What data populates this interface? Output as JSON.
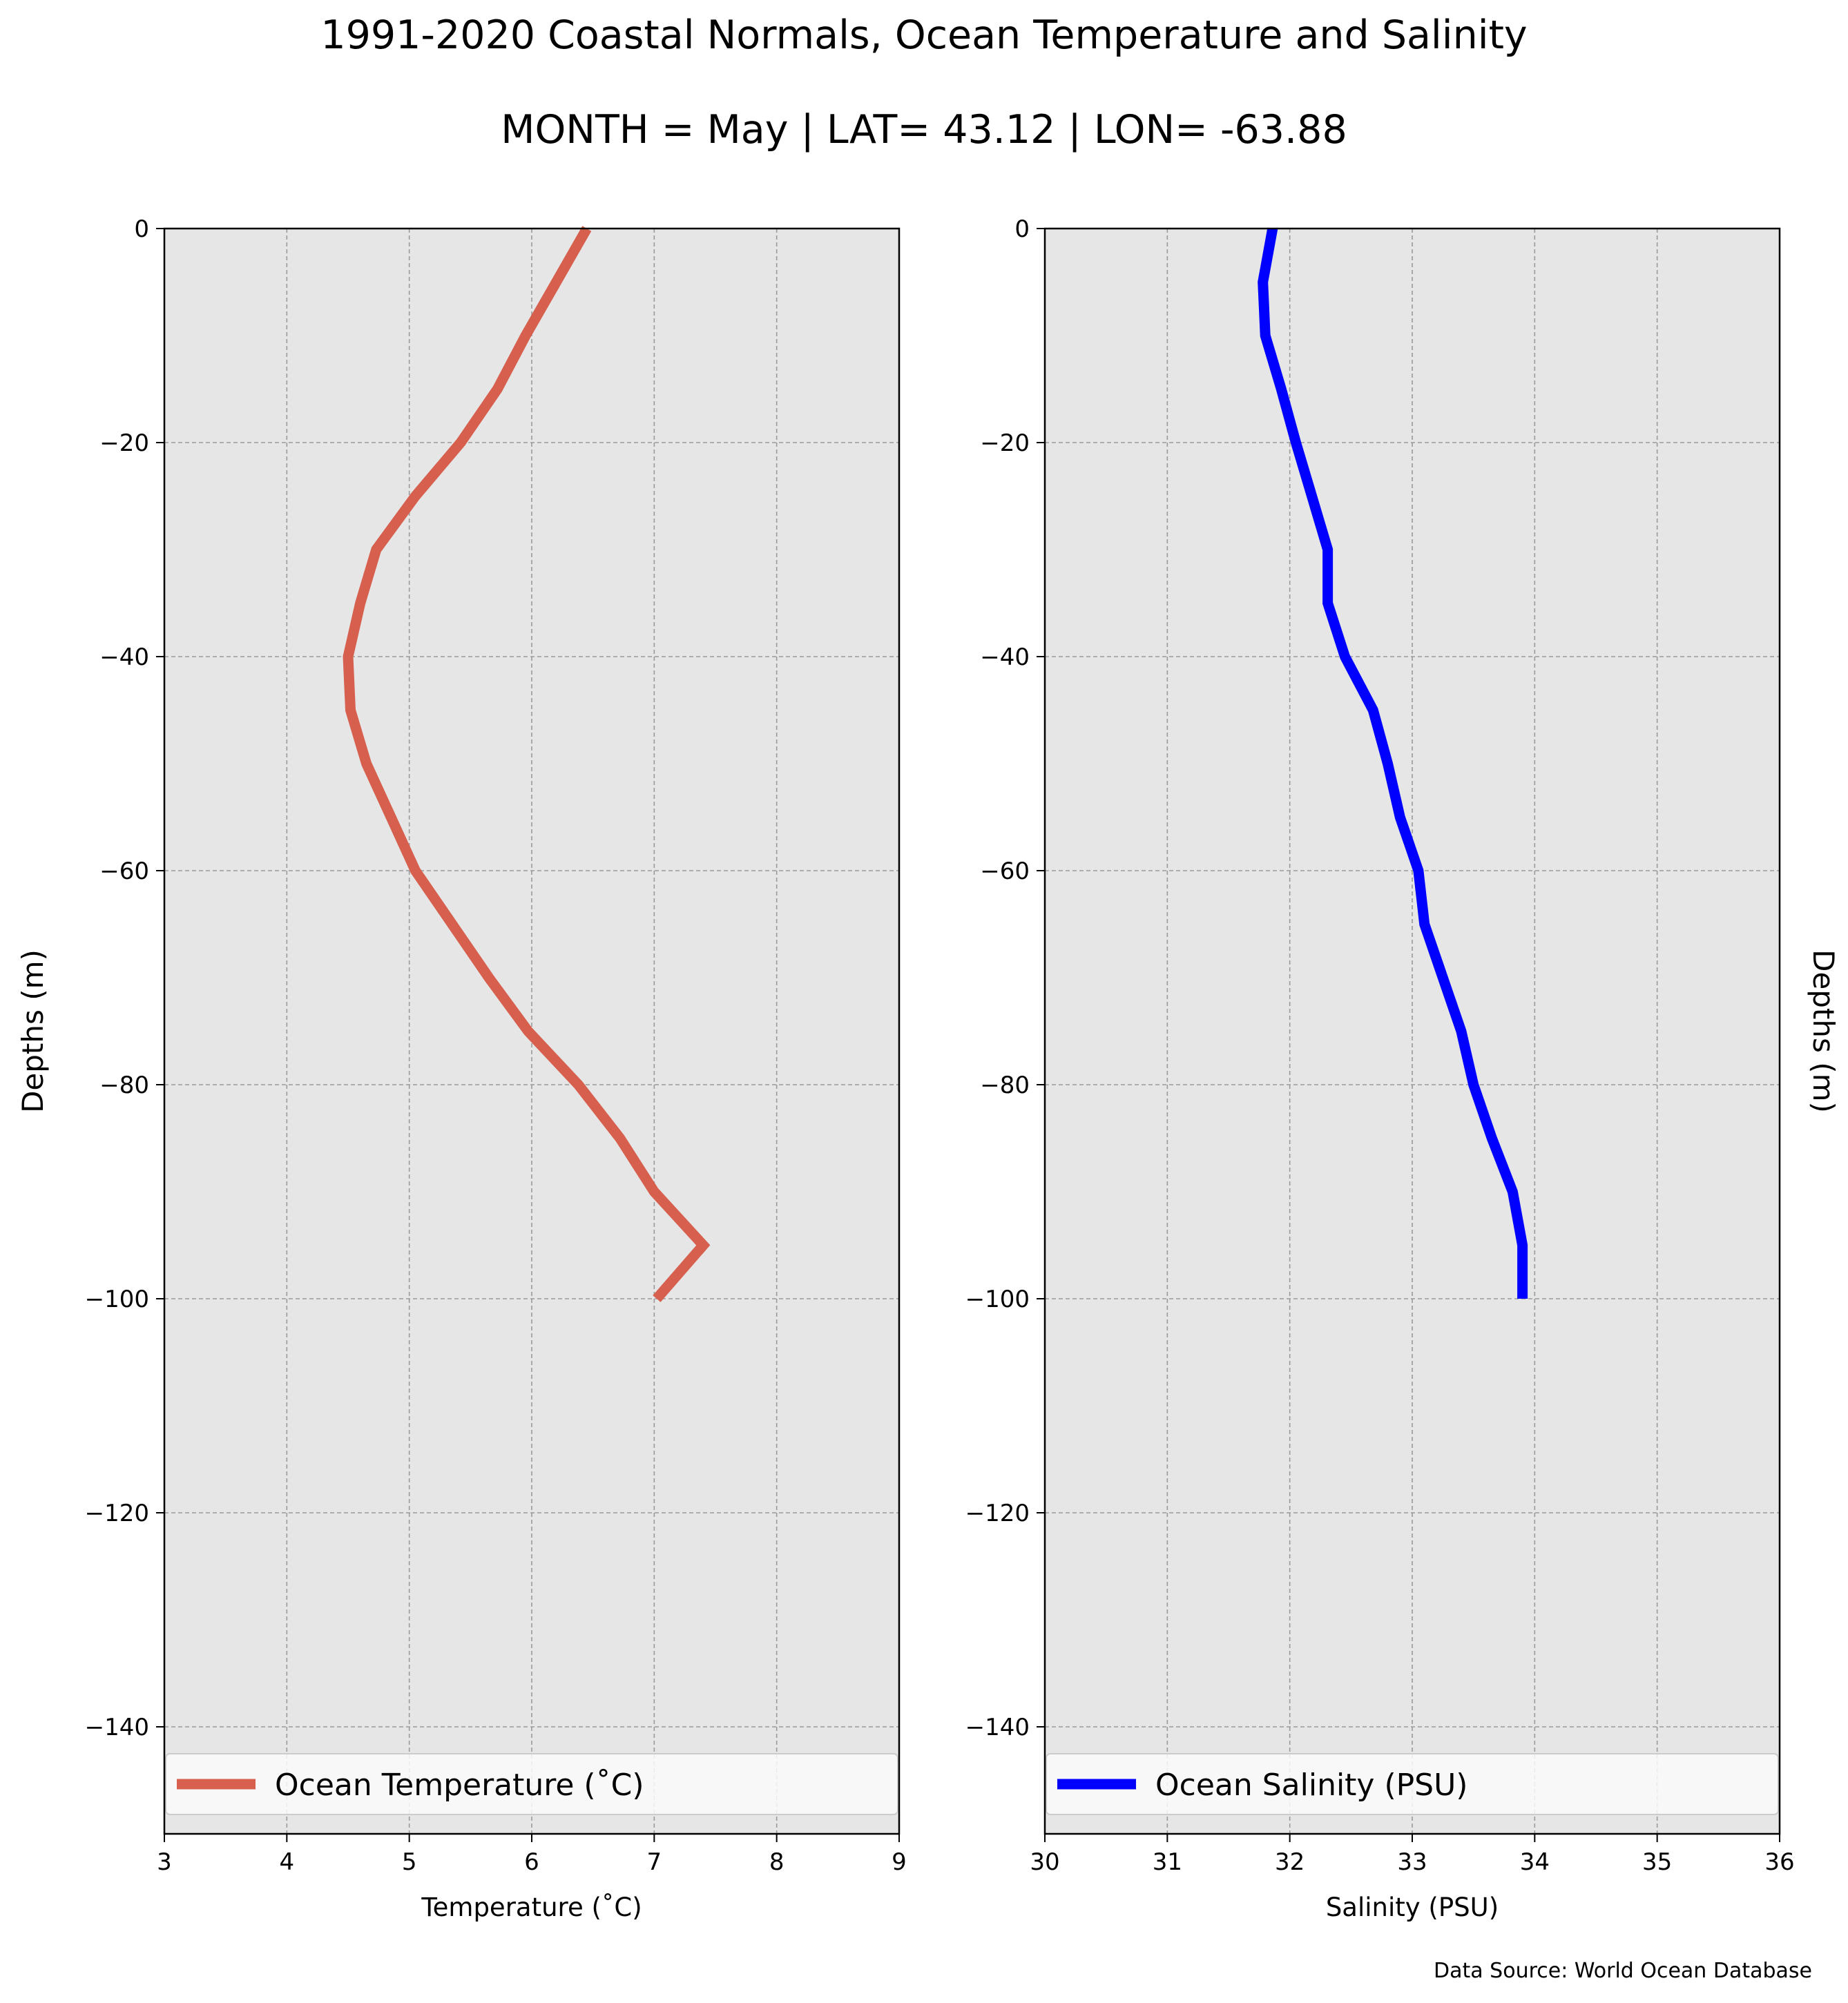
{
  "title": "1991-2020 Coastal Normals, Ocean Temperature and Salinity",
  "subtitle": "MONTH = May | LAT= 43.12 | LON= -63.88",
  "source": "Data Source: World Ocean Database",
  "colors": {
    "temperature": "#d65f4e",
    "salinity": "#0000ff",
    "axes_bg": "#e6e6e6",
    "grid": "#9a9a9a"
  },
  "chart_data": [
    {
      "type": "line",
      "xlabel": "Temperature ($^\\circ$C)",
      "xlabel_display": "Temperature (˚C)",
      "ylabel": "Depths (m)",
      "ylabel_side": "left",
      "xlim": [
        3,
        9
      ],
      "ylim": [
        -150,
        0
      ],
      "xticks": [
        3,
        4,
        5,
        6,
        7,
        8,
        9
      ],
      "yticks": [
        0,
        -20,
        -40,
        -60,
        -80,
        -100,
        -120,
        -140
      ],
      "grid": true,
      "legend": "bottom",
      "series": [
        {
          "name": "Ocean Temperature (˚C)",
          "color": "#d65f4e",
          "x": [
            6.45,
            6.2,
            5.95,
            5.72,
            5.42,
            5.05,
            4.73,
            4.6,
            4.5,
            4.52,
            4.65,
            4.85,
            5.05,
            5.35,
            5.65,
            5.97,
            6.38,
            6.72,
            7.0,
            7.4,
            7.02
          ],
          "y": [
            0,
            -5,
            -10,
            -15,
            -20,
            -25,
            -30,
            -35,
            -40,
            -45,
            -50,
            -55,
            -60,
            -65,
            -70,
            -75,
            -80,
            -85,
            -90,
            -95,
            -100
          ]
        }
      ]
    },
    {
      "type": "line",
      "xlabel": "Salinity (PSU)",
      "ylabel": "Depths (m)",
      "ylabel_side": "right",
      "xlim": [
        30,
        36
      ],
      "ylim": [
        -150,
        0
      ],
      "xticks": [
        30,
        31,
        32,
        33,
        34,
        35,
        36
      ],
      "yticks": [
        0,
        -20,
        -40,
        -60,
        -80,
        -100,
        -120,
        -140
      ],
      "grid": true,
      "legend": "bottom",
      "series": [
        {
          "name": "Ocean Salinity (PSU)",
          "color": "#0000ff",
          "x": [
            31.86,
            31.78,
            31.8,
            31.93,
            32.05,
            32.18,
            32.31,
            32.31,
            32.45,
            32.68,
            32.8,
            32.9,
            33.05,
            33.1,
            33.25,
            33.4,
            33.5,
            33.65,
            33.82,
            33.9,
            33.9
          ],
          "y": [
            0,
            -5,
            -10,
            -15,
            -20,
            -25,
            -30,
            -35,
            -40,
            -45,
            -50,
            -55,
            -60,
            -65,
            -70,
            -75,
            -80,
            -85,
            -90,
            -95,
            -100
          ]
        }
      ]
    }
  ]
}
